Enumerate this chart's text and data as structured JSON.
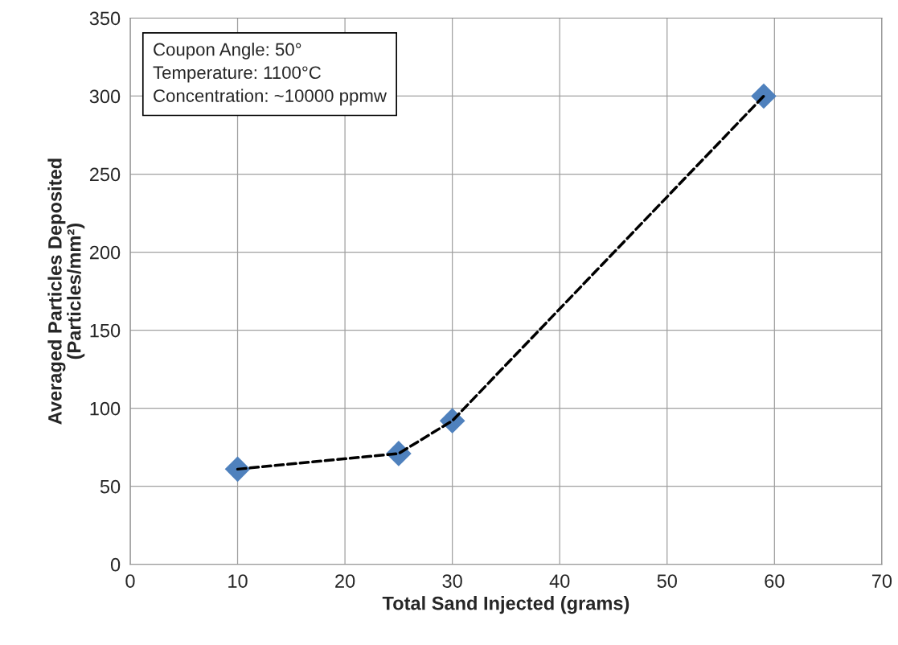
{
  "chart_data": {
    "type": "scatter",
    "xlabel": "Total Sand Injected (grams)",
    "ylabel": "Averaged Particles Deposited\n(Particles/mm²)",
    "x": [
      10,
      25,
      30,
      59
    ],
    "series": [
      {
        "type": "line",
        "color": "#000000",
        "values": [
          61,
          71,
          92,
          300
        ],
        "line_style": "dashed",
        "marker": "none"
      },
      {
        "color": "#4f81bd",
        "values": [
          61,
          71,
          92,
          300
        ],
        "marker": "diamond"
      }
    ],
    "xlim": [
      0,
      70
    ],
    "xticks": [
      0,
      10,
      20,
      30,
      40,
      50,
      60,
      70
    ],
    "ylim": [
      0,
      350
    ],
    "yticks": [
      0,
      50,
      100,
      150,
      200,
      250,
      300,
      350
    ],
    "grid": true,
    "legend": false,
    "annotations": [
      "Coupon Angle: 50°\nTemperature: 1100°C\nConcentration: ~10000 ppmw"
    ]
  }
}
